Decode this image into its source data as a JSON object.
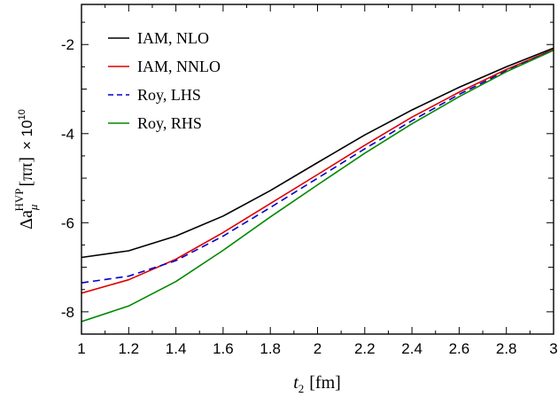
{
  "chart_data": {
    "type": "line",
    "xlabel_symbol": "t",
    "xlabel_sub": "2",
    "xlabel_unit": "[fm]",
    "ylabel_main": "Δa",
    "ylabel_sub": "μ",
    "ylabel_sup": "HVP",
    "ylabel_arg": "[ππ]",
    "ylabel_scale": "× 10",
    "ylabel_scale_exp": "10",
    "xlim": [
      1,
      3
    ],
    "ylim": [
      -8.5,
      -1.1
    ],
    "xticks": [
      "1",
      "1.2",
      "1.4",
      "1.6",
      "1.8",
      "2",
      "2.2",
      "2.4",
      "2.6",
      "2.8",
      "3"
    ],
    "yticks": [
      "-2",
      "-4",
      "-6",
      "-8"
    ],
    "legend_position": "top-left",
    "x": [
      1.0,
      1.2,
      1.4,
      1.6,
      1.8,
      2.0,
      2.2,
      2.4,
      2.6,
      2.8,
      3.0
    ],
    "series": [
      {
        "name": "IAM, NLO",
        "color": "#000000",
        "dash": "solid",
        "values": [
          -6.78,
          -6.63,
          -6.3,
          -5.85,
          -5.28,
          -4.65,
          -4.03,
          -3.47,
          -2.96,
          -2.5,
          -2.08
        ]
      },
      {
        "name": "IAM, NNLO",
        "color": "#e00000",
        "dash": "solid",
        "values": [
          -7.58,
          -7.28,
          -6.82,
          -6.22,
          -5.57,
          -4.92,
          -4.26,
          -3.63,
          -3.07,
          -2.56,
          -2.11
        ]
      },
      {
        "name": "Roy, LHS",
        "color": "#0000cc",
        "dash": "dashed",
        "values": [
          -7.35,
          -7.2,
          -6.85,
          -6.3,
          -5.66,
          -5.0,
          -4.34,
          -3.71,
          -3.12,
          -2.59,
          -2.12
        ]
      },
      {
        "name": "Roy, RHS",
        "color": "#008800",
        "dash": "solid",
        "values": [
          -8.22,
          -7.87,
          -7.32,
          -6.62,
          -5.87,
          -5.15,
          -4.44,
          -3.78,
          -3.17,
          -2.61,
          -2.13
        ]
      }
    ]
  }
}
